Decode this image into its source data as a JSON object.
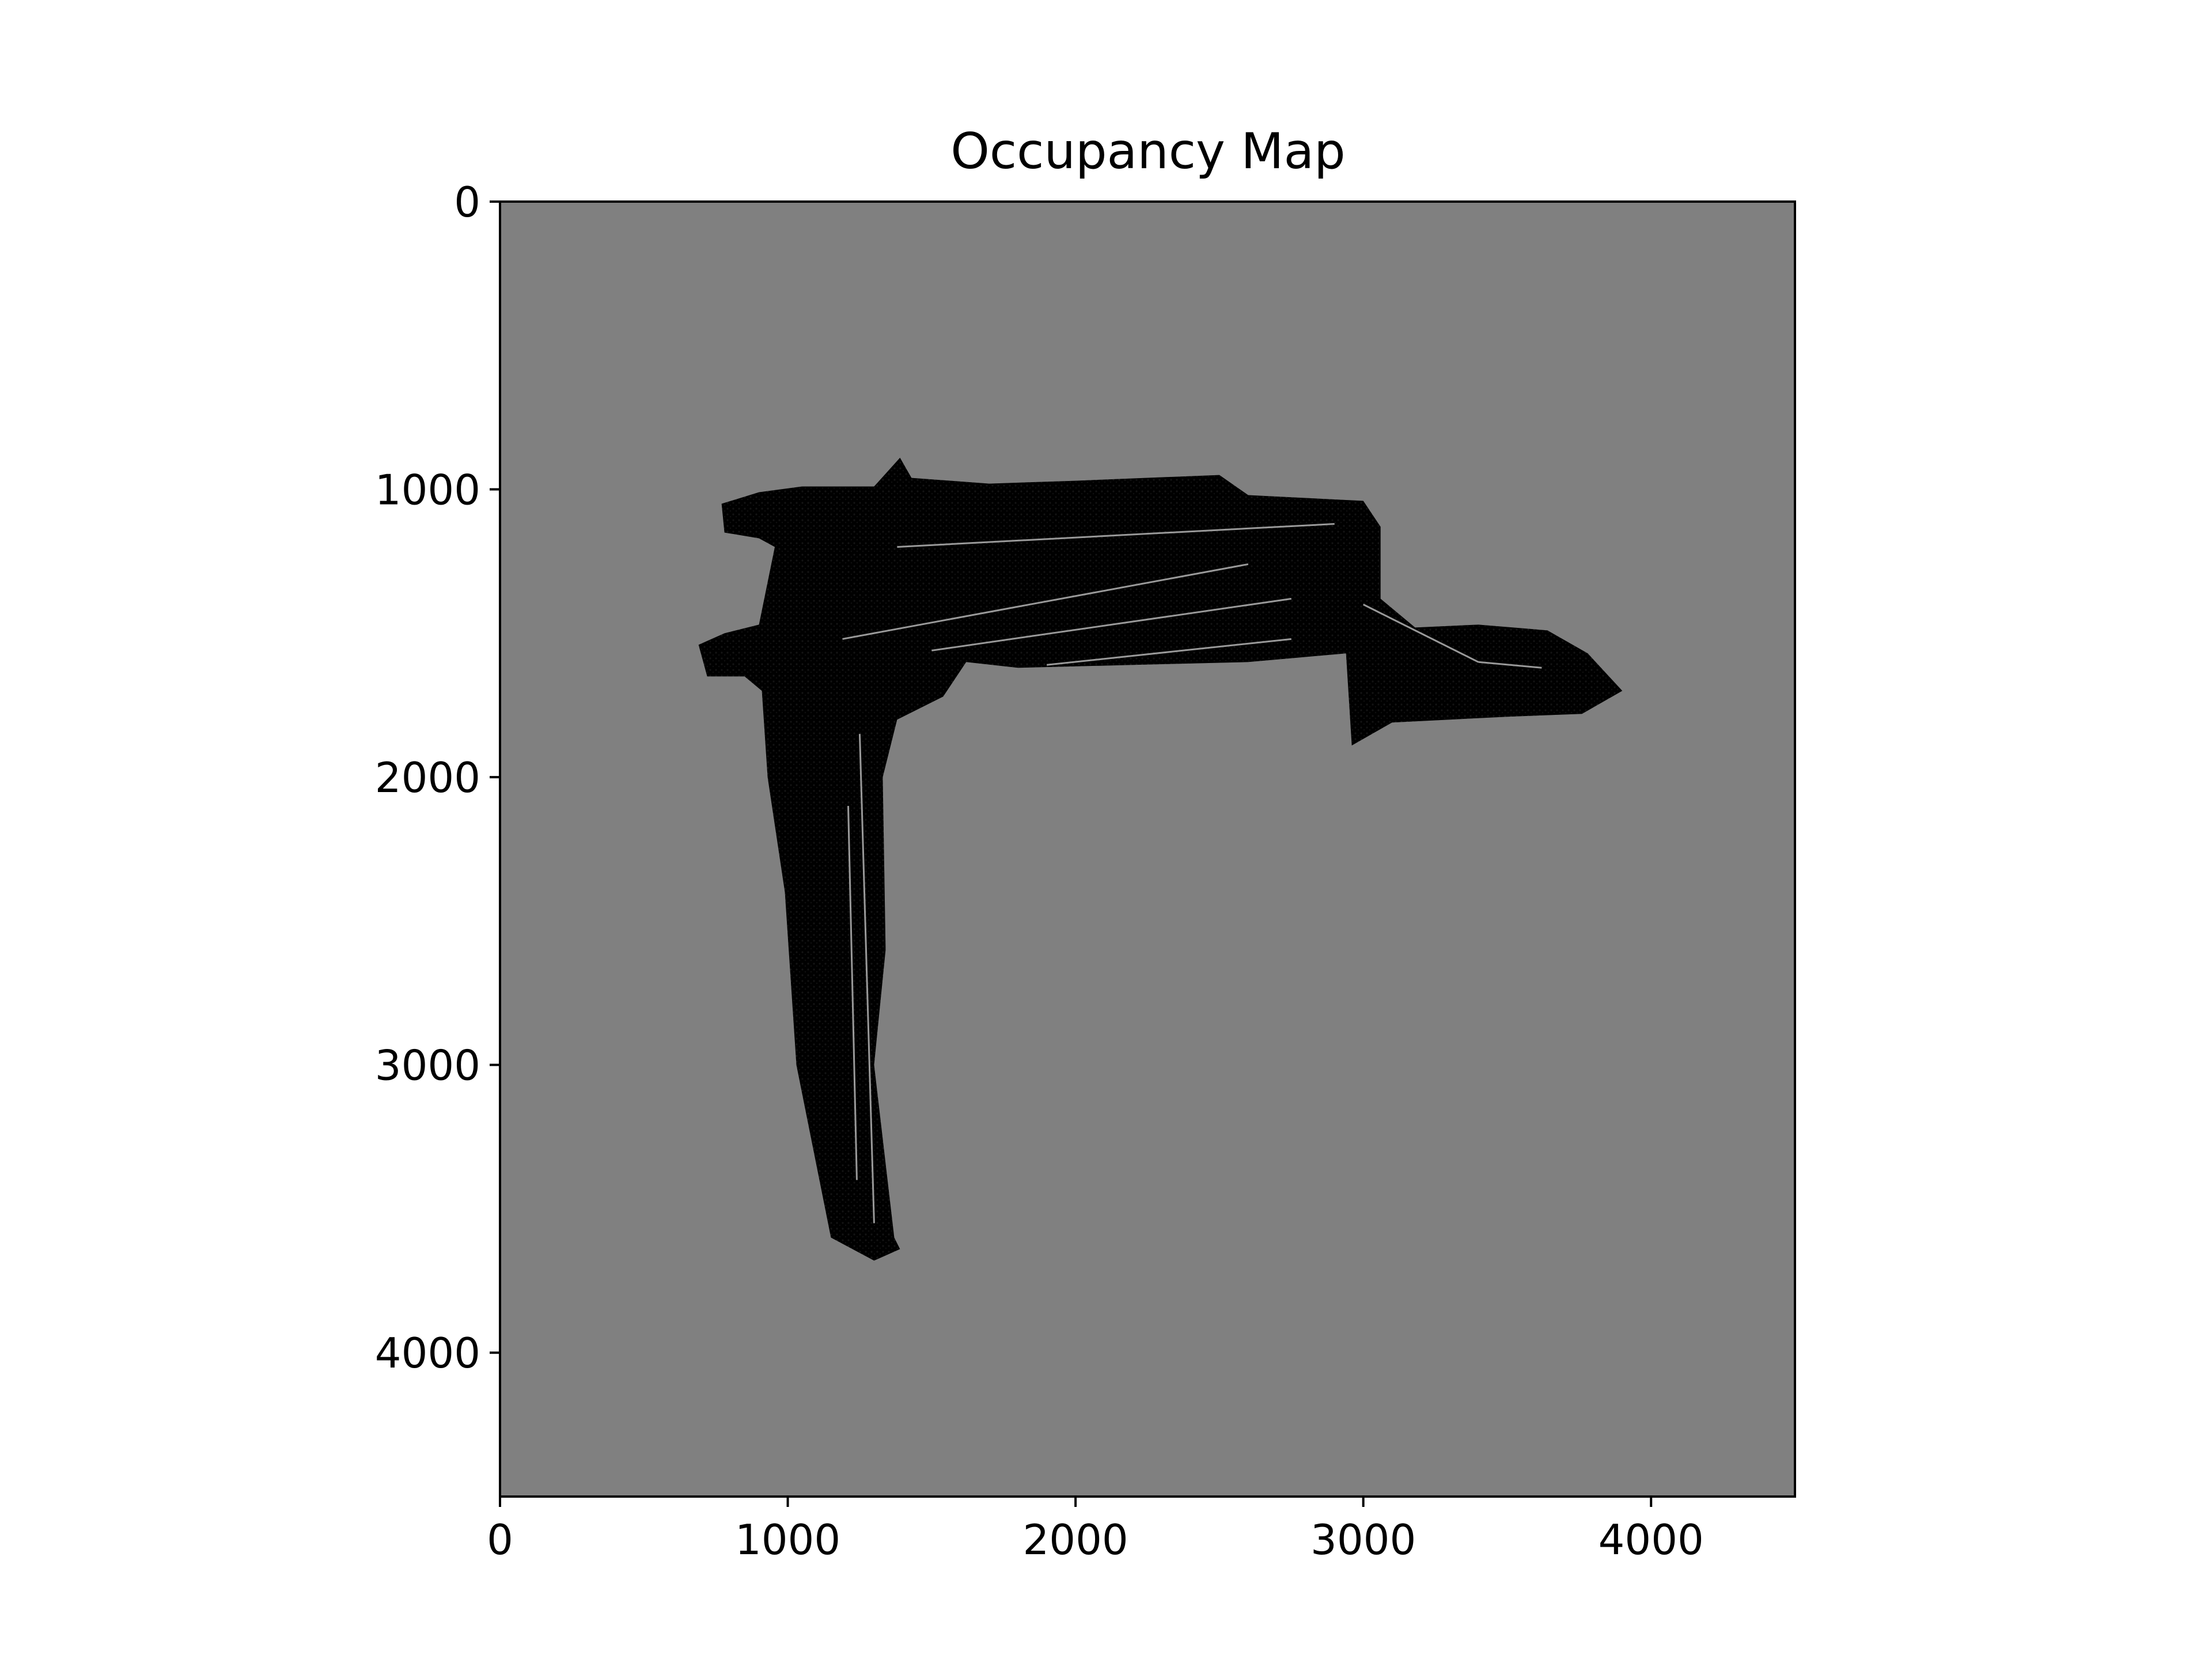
{
  "chart_data": {
    "type": "heatmap",
    "title": "Occupancy Map",
    "xlabel": "",
    "ylabel": "",
    "xlim": [
      0,
      4500
    ],
    "ylim": [
      4500,
      0
    ],
    "x_ticks": [
      0,
      1000,
      2000,
      3000,
      4000
    ],
    "y_ticks": [
      0,
      1000,
      2000,
      3000,
      4000
    ],
    "x_tick_labels": [
      "0",
      "1000",
      "2000",
      "3000",
      "4000"
    ],
    "y_tick_labels": [
      "0",
      "1000",
      "2000",
      "3000",
      "4000"
    ],
    "grid": false,
    "legend": "none",
    "colormap": "gray",
    "colors": {
      "unknown": "#808080",
      "occupied": "#000000",
      "free_streaks": "#b4b4b4",
      "texture": "#3a3a3a"
    },
    "occupied_region_outline": [
      [
        690,
        1540
      ],
      [
        780,
        1500
      ],
      [
        900,
        1470
      ],
      [
        955,
        1200
      ],
      [
        900,
        1170
      ],
      [
        780,
        1150
      ],
      [
        770,
        1050
      ],
      [
        900,
        1010
      ],
      [
        1050,
        990
      ],
      [
        1300,
        990
      ],
      [
        1390,
        890
      ],
      [
        1430,
        960
      ],
      [
        1700,
        980
      ],
      [
        2000,
        970
      ],
      [
        2500,
        950
      ],
      [
        2600,
        1020
      ],
      [
        2800,
        1030
      ],
      [
        3000,
        1040
      ],
      [
        3060,
        1130
      ],
      [
        3060,
        1380
      ],
      [
        3180,
        1480
      ],
      [
        3400,
        1470
      ],
      [
        3640,
        1490
      ],
      [
        3780,
        1570
      ],
      [
        3900,
        1700
      ],
      [
        3760,
        1780
      ],
      [
        3500,
        1790
      ],
      [
        3300,
        1800
      ],
      [
        3100,
        1810
      ],
      [
        2960,
        1890
      ],
      [
        2940,
        1570
      ],
      [
        2600,
        1600
      ],
      [
        2200,
        1610
      ],
      [
        1800,
        1620
      ],
      [
        1620,
        1600
      ],
      [
        1540,
        1720
      ],
      [
        1380,
        1800
      ],
      [
        1330,
        2000
      ],
      [
        1340,
        2600
      ],
      [
        1300,
        3000
      ],
      [
        1370,
        3600
      ],
      [
        1390,
        3640
      ],
      [
        1300,
        3680
      ],
      [
        1150,
        3600
      ],
      [
        1090,
        3300
      ],
      [
        1030,
        3000
      ],
      [
        990,
        2400
      ],
      [
        930,
        2000
      ],
      [
        910,
        1700
      ],
      [
        850,
        1650
      ],
      [
        720,
        1650
      ]
    ],
    "free_streaks": [
      [
        [
          1380,
          1200
        ],
        [
          2900,
          1120
        ]
      ],
      [
        [
          1190,
          1520
        ],
        [
          2600,
          1260
        ]
      ],
      [
        [
          1500,
          1560
        ],
        [
          2750,
          1380
        ]
      ],
      [
        [
          1900,
          1610
        ],
        [
          2750,
          1520
        ]
      ],
      [
        [
          1250,
          1850
        ],
        [
          1300,
          3550
        ]
      ],
      [
        [
          1210,
          2100
        ],
        [
          1240,
          3400
        ]
      ],
      [
        [
          3000,
          1400
        ],
        [
          3400,
          1600
        ]
      ],
      [
        [
          3400,
          1600
        ],
        [
          3620,
          1620
        ]
      ]
    ]
  }
}
